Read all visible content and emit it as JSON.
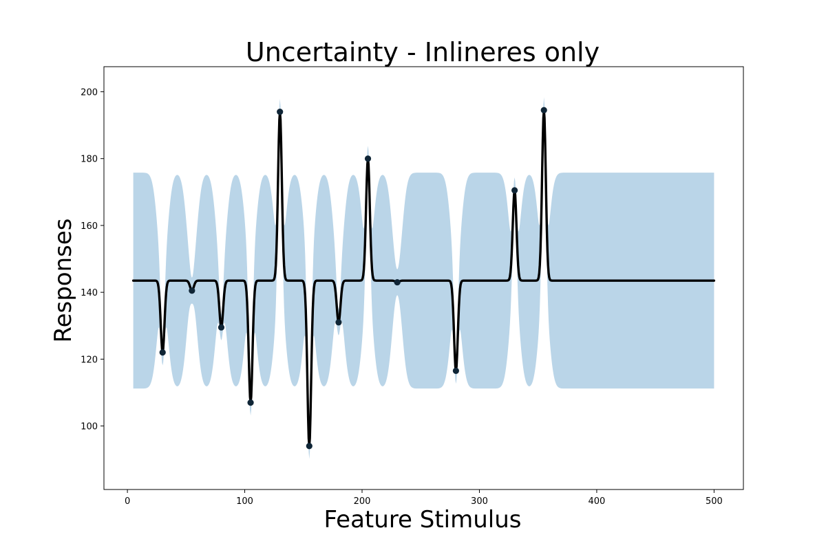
{
  "chart_data": {
    "type": "line",
    "title": "Uncertainty - Inlineres only",
    "xlabel": "Feature Stimulus",
    "ylabel": "Responses",
    "xlim": [
      -20,
      525
    ],
    "ylim": [
      81,
      207.5
    ],
    "x_ticks": [
      0,
      100,
      200,
      300,
      400,
      500
    ],
    "y_ticks": [
      100,
      120,
      140,
      160,
      180,
      200
    ],
    "grid": false,
    "legend": "none",
    "baseline": 143.5,
    "band_half_width": 32.3,
    "x_range": [
      5,
      500
    ],
    "points": [
      {
        "x": 30,
        "y": 122
      },
      {
        "x": 55,
        "y": 140.5
      },
      {
        "x": 80,
        "y": 129.5
      },
      {
        "x": 105,
        "y": 107
      },
      {
        "x": 130,
        "y": 194
      },
      {
        "x": 155,
        "y": 94
      },
      {
        "x": 180,
        "y": 131
      },
      {
        "x": 205,
        "y": 180
      },
      {
        "x": 230,
        "y": 143
      },
      {
        "x": 280,
        "y": 116.5
      },
      {
        "x": 330,
        "y": 170.5
      },
      {
        "x": 355,
        "y": 194.5
      }
    ],
    "series": [
      {
        "kind": "mean-line",
        "color": "#000000"
      },
      {
        "kind": "uncertainty-band",
        "color": "#bad5e8"
      },
      {
        "kind": "observations",
        "color": "#0f2536"
      }
    ]
  }
}
